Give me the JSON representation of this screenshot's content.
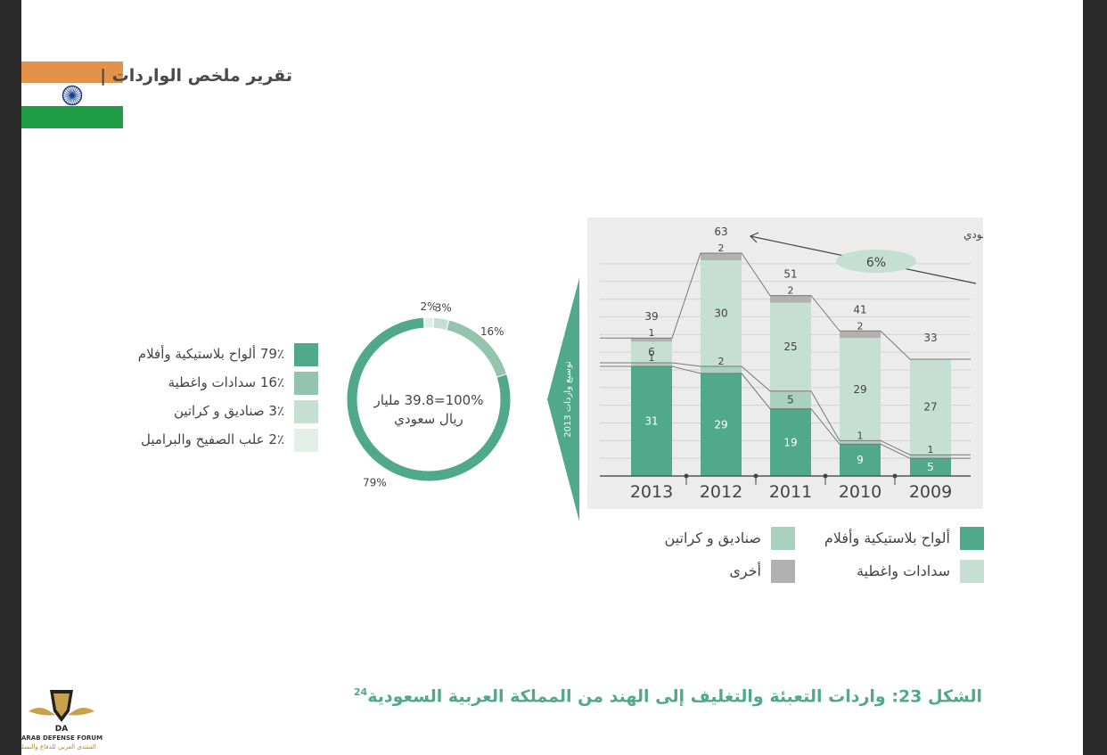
{
  "header": {
    "title": "تقرير ملخص الواردات |"
  },
  "colors": {
    "plastic": "#4fa98a",
    "closures": "#93c4ae",
    "boxes": "#c5dfd2",
    "cans": "#e3efe8",
    "others": "#b1b1b1",
    "chart_bg": "#ececec",
    "flag_orange": "#e39247",
    "flag_green": "#1f9d44",
    "caption": "#4eaa88"
  },
  "pie_legend": [
    {
      "label": "79٪ ألواح بلاستيكية وأفلام",
      "color": "#4fa98a"
    },
    {
      "label": "16٪ سدادات واغطية",
      "color": "#93c4ae"
    },
    {
      "label": "3٪ صناديق و كراتين",
      "color": "#c5dfd2"
    },
    {
      "label": "2٪ علب الصفيح والبراميل",
      "color": "#e3efe8"
    }
  ],
  "bottom_legend": [
    {
      "label": "ألواح بلاستيكية وأفلام",
      "color": "#4fa98a"
    },
    {
      "label": "صناديق و كراتين",
      "color": "#a8d2bf"
    },
    {
      "label": "سدادات واغطية",
      "color": "#c5dfd2"
    },
    {
      "label": "أخرى",
      "color": "#b1b1b1"
    }
  ],
  "caption": {
    "text": "الشكل 23: واردات التعبئة والتغليف إلى الهند من المملكة العربية السعودية",
    "sup": "24"
  },
  "logo": {
    "name": "ARAB DEFENSE FORUM",
    "subtitle": "المنتدى العربي للدفاع والتسليح"
  },
  "chart_data": [
    {
      "type": "pie",
      "title": "",
      "center_label_line1": "100%=39.8 مليار",
      "center_label_line2": "ريال سعودي",
      "slices": [
        {
          "name": "ألواح بلاستيكية وأفلام",
          "value": 79,
          "label": "79%"
        },
        {
          "name": "سدادات واغطية",
          "value": 16,
          "label": "16%"
        },
        {
          "name": "صناديق و كراتين",
          "value": 3,
          "label": "3%"
        },
        {
          "name": "علب الصفيح والبراميل",
          "value": 2,
          "label": "2%"
        }
      ]
    },
    {
      "type": "bar",
      "stacked": true,
      "unit_label": "مليون ريال سعودي",
      "side_label": "توسيع واردات 2013",
      "growth_label": "6%",
      "categories": [
        "2013",
        "2012",
        "2011",
        "2010",
        "2009"
      ],
      "totals": [
        39,
        63,
        51,
        41,
        33
      ],
      "ylim": [
        0,
        63
      ],
      "grid": true,
      "series": [
        {
          "name": "ألواح بلاستيكية وأفلام",
          "values": [
            31,
            29,
            19,
            9,
            5
          ]
        },
        {
          "name": "صناديق و كراتين",
          "values": [
            1,
            2,
            5,
            1,
            1
          ]
        },
        {
          "name": "سدادات واغطية",
          "values": [
            6,
            30,
            25,
            29,
            27
          ]
        },
        {
          "name": "أخرى",
          "values": [
            1,
            2,
            2,
            2,
            null
          ]
        }
      ]
    }
  ]
}
